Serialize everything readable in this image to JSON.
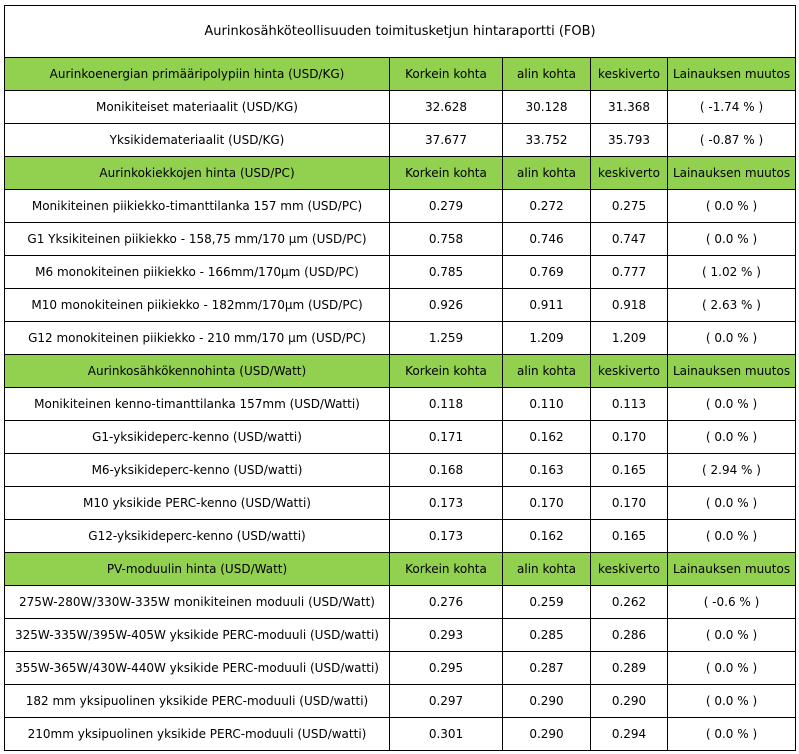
{
  "title": "Aurinkosähköteollisuuden toimitusketjun hintaraportti (FOB)",
  "columns": [
    "Korkein kohta",
    "alin kohta",
    "keskiverto",
    "Lainauksen muutos"
  ],
  "sections": [
    {
      "header": "Aurinkoenergian primääripolypiin hinta (USD/KG)",
      "rows": [
        {
          "name": "Monikiteiset materiaalit (USD/KG)",
          "high": "32.628",
          "low": "30.128",
          "avg": "31.368",
          "change": "( -1.74 % )"
        },
        {
          "name": "Yksikidemateriaalit (USD/KG)",
          "high": "37.677",
          "low": "33.752",
          "avg": "35.793",
          "change": "( -0.87 % )"
        }
      ]
    },
    {
      "header": "Aurinkokiekkojen hinta (USD/PC)",
      "rows": [
        {
          "name": "Monikiteinen piikiekko-timanttilanka 157 mm (USD/PC)",
          "high": "0.279",
          "low": "0.272",
          "avg": "0.275",
          "change": "( 0.0 % )"
        },
        {
          "name": "G1 Yksikiteinen piikiekko - 158,75 mm/170 μm (USD/PC)",
          "high": "0.758",
          "low": "0.746",
          "avg": "0.747",
          "change": "( 0.0 % )"
        },
        {
          "name": "M6 monokiteinen piikiekko - 166mm/170μm (USD/PC)",
          "high": "0.785",
          "low": "0.769",
          "avg": "0.777",
          "change": "( 1.02 % )"
        },
        {
          "name": "M10 monokiteinen piikiekko - 182mm/170μm (USD/PC)",
          "high": "0.926",
          "low": "0.911",
          "avg": "0.918",
          "change": "( 2.63 % )"
        },
        {
          "name": "G12 monokiteinen piikiekko - 210 mm/170 μm (USD/PC)",
          "high": "1.259",
          "low": "1.209",
          "avg": "1.209",
          "change": "( 0.0 % )"
        }
      ]
    },
    {
      "header": "Aurinkosähkökennohinta (USD/Watt)",
      "rows": [
        {
          "name": "Monikiteinen kenno-timanttilanka 157mm (USD/Watti)",
          "high": "0.118",
          "low": "0.110",
          "avg": "0.113",
          "change": "( 0.0 % )"
        },
        {
          "name": "G1-yksikideperc-kenno (USD/watti)",
          "high": "0.171",
          "low": "0.162",
          "avg": "0.170",
          "change": "( 0.0 % )"
        },
        {
          "name": "M6-yksikideperc-kenno (USD/watti)",
          "high": "0.168",
          "low": "0.163",
          "avg": "0.165",
          "change": "( 2.94 % )"
        },
        {
          "name": "M10 yksikide PERC-kenno (USD/Watti)",
          "high": "0.173",
          "low": "0.170",
          "avg": "0.170",
          "change": "( 0.0 % )"
        },
        {
          "name": "G12-yksikideperc-kenno (USD/watti)",
          "high": "0.173",
          "low": "0.162",
          "avg": "0.165",
          "change": "( 0.0 % )"
        }
      ]
    },
    {
      "header": "PV-moduulin hinta (USD/Watt)",
      "rows": [
        {
          "name": "275W-280W/330W-335W monikiteinen moduuli (USD/Watt)",
          "high": "0.276",
          "low": "0.259",
          "avg": "0.262",
          "change": "( -0.6 % )"
        },
        {
          "name": "325W-335W/395W-405W yksikide PERC-moduuli (USD/watti)",
          "high": "0.293",
          "low": "0.285",
          "avg": "0.286",
          "change": "( 0.0 % )"
        },
        {
          "name": "355W-365W/430W-440W yksikide PERC-moduuli (USD/watti)",
          "high": "0.295",
          "low": "0.287",
          "avg": "0.289",
          "change": "( 0.0 % )"
        },
        {
          "name": "182 mm yksipuolinen yksikide PERC-moduuli (USD/watti)",
          "high": "0.297",
          "low": "0.290",
          "avg": "0.290",
          "change": "( 0.0 % )"
        },
        {
          "name": "210mm yksipuolinen yksikide PERC-moduuli (USD/watti)",
          "high": "0.301",
          "low": "0.290",
          "avg": "0.294",
          "change": "( 0.0 % )"
        }
      ]
    }
  ]
}
